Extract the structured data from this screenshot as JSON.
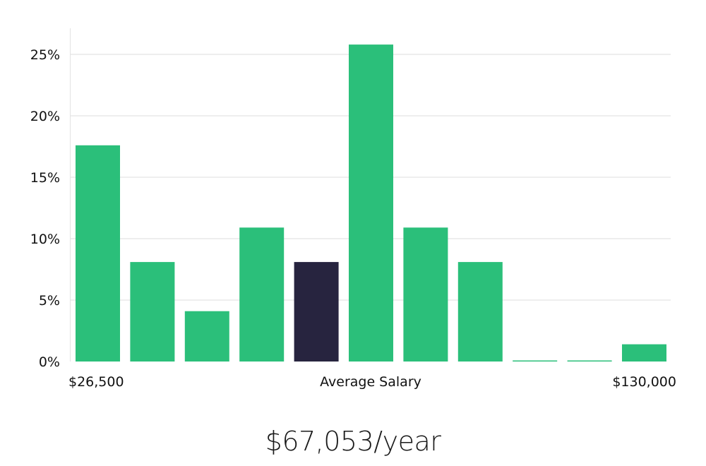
{
  "chart_data": {
    "type": "bar",
    "values": [
      17.6,
      8.1,
      4.1,
      10.9,
      8.1,
      25.8,
      10.9,
      8.1,
      0,
      0,
      1.4
    ],
    "highlight_index": 4,
    "y_ticks": [
      "0%",
      "5%",
      "10%",
      "15%",
      "20%",
      "25%"
    ],
    "ylim": [
      0,
      27
    ],
    "x_labels": {
      "left": "$26,500",
      "center": "Average Salary",
      "right": "$130,000"
    },
    "grid": true
  },
  "colors": {
    "bar": "#2bbf7a",
    "bar_highlight": "#27243f",
    "grid": "#dddddd",
    "axis": "#e3e3e3"
  },
  "average_salary": "$67,053/year"
}
